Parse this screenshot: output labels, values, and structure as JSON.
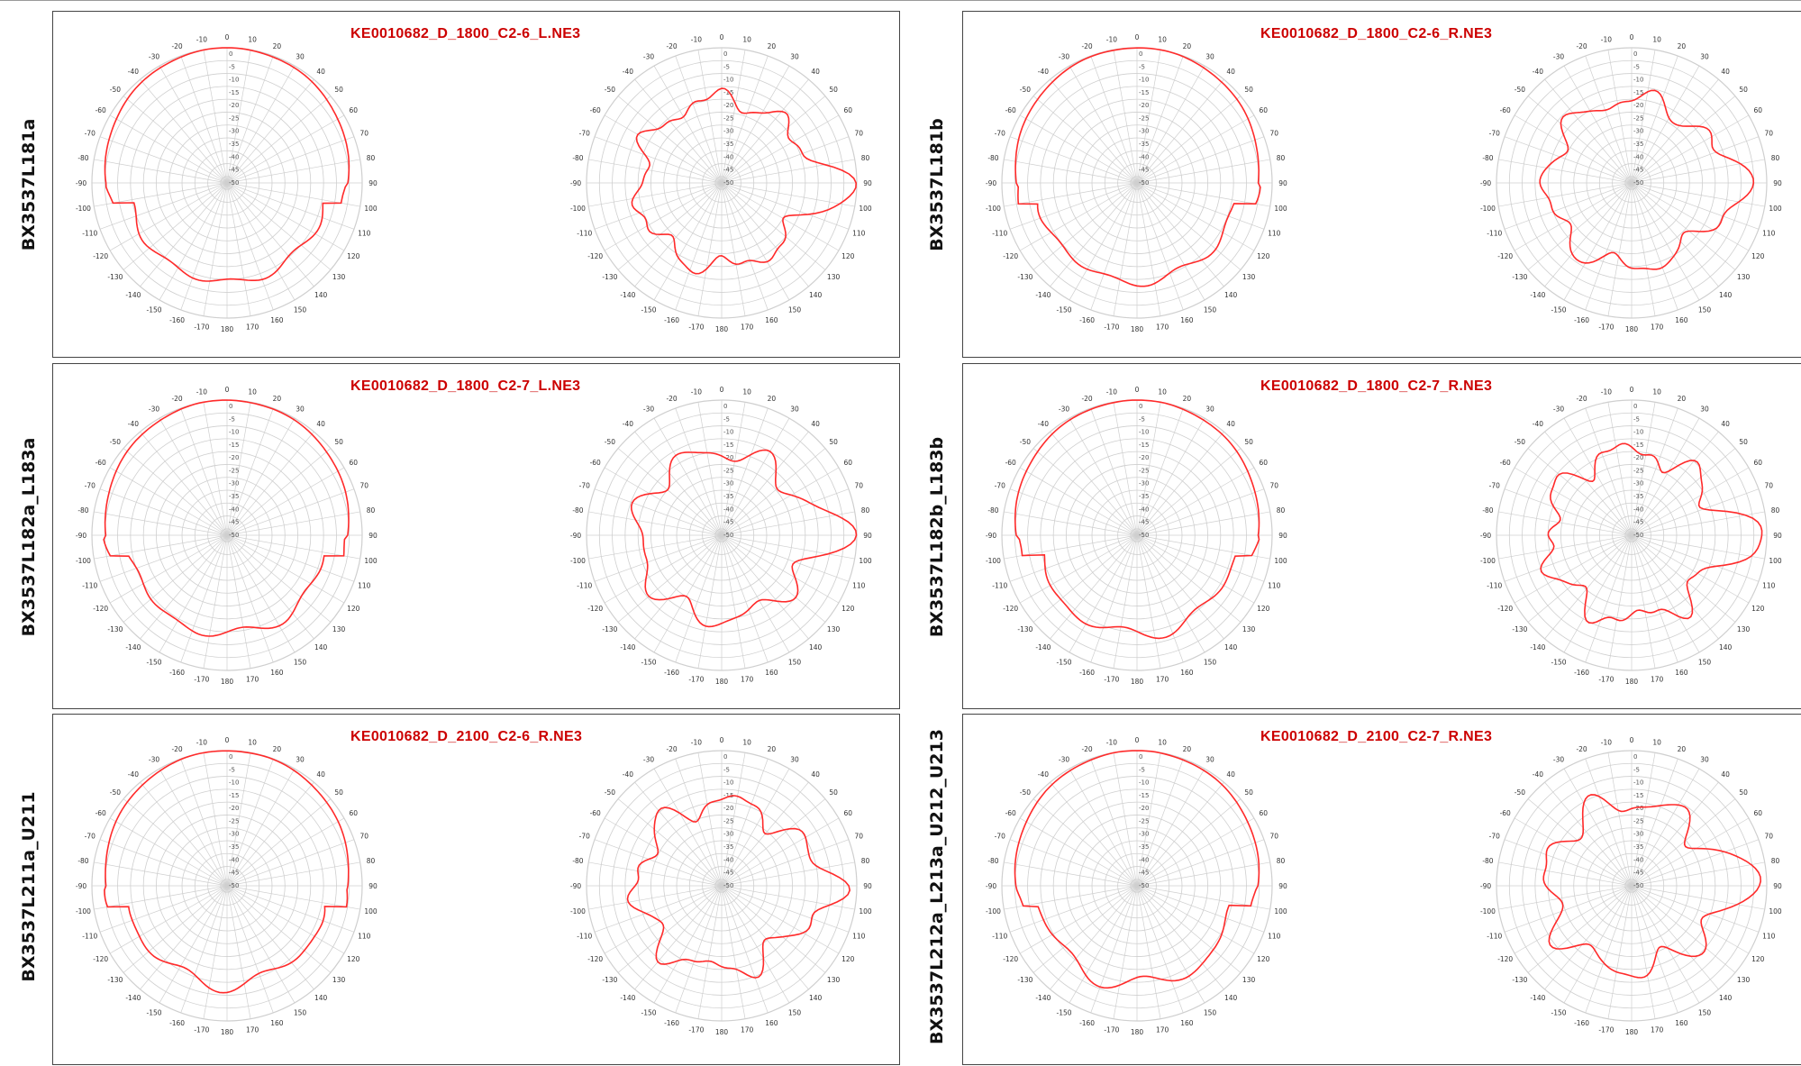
{
  "colors": {
    "trace": "#ff2a2a",
    "grid": "#cfcfcf",
    "title": "#cc0000",
    "frame": "#444444"
  },
  "chart_data": [
    {
      "type": "polar-line",
      "row_label": "BX3537L181a",
      "title": "KE0010682_D_1800_C2-6_L.NE3",
      "patterns": [
        {
          "kind": "horizontal",
          "seed": 1
        },
        {
          "kind": "vertical",
          "seed": 2
        }
      ]
    },
    {
      "type": "polar-line",
      "row_label": "BX3537L181b",
      "title": "KE0010682_D_1800_C2-6_R.NE3",
      "patterns": [
        {
          "kind": "horizontal",
          "seed": 3
        },
        {
          "kind": "vertical",
          "seed": 4
        }
      ]
    },
    {
      "type": "polar-line",
      "row_label": "BX3537L182a_L183a",
      "title": "KE0010682_D_1800_C2-7_L.NE3",
      "patterns": [
        {
          "kind": "horizontal",
          "seed": 5
        },
        {
          "kind": "vertical",
          "seed": 6
        }
      ]
    },
    {
      "type": "polar-line",
      "row_label": "BX3537L182b_L183b",
      "title": "KE0010682_D_1800_C2-7_R.NE3",
      "patterns": [
        {
          "kind": "horizontal",
          "seed": 7
        },
        {
          "kind": "vertical",
          "seed": 8
        }
      ]
    },
    {
      "type": "polar-line",
      "row_label": "BX3537L211a_U211",
      "title": "KE0010682_D_2100_C2-6_R.NE3",
      "patterns": [
        {
          "kind": "horizontal",
          "seed": 9
        },
        {
          "kind": "vertical",
          "seed": 10
        }
      ]
    },
    {
      "type": "polar-line",
      "row_label": "BX3537L212a_L213a_U212_U213",
      "title": "KE0010682_D_2100_C2-7_R.NE3",
      "patterns": [
        {
          "kind": "horizontal",
          "seed": 11
        },
        {
          "kind": "vertical",
          "seed": 12
        }
      ]
    }
  ],
  "angle_labels": [
    "0",
    "10",
    "20",
    "30",
    "40",
    "50",
    "60",
    "70",
    "80",
    "90",
    "100",
    "110",
    "120",
    "130",
    "140",
    "150",
    "160",
    "170",
    "180",
    "-170",
    "-160",
    "-150",
    "-140",
    "-130",
    "-120",
    "-110",
    "-100",
    "-90",
    "-80",
    "-70",
    "-60",
    "-50",
    "-40",
    "-30",
    "-20",
    "-10"
  ],
  "radial_labels": [
    "0",
    "-5",
    "-10",
    "-15",
    "-20",
    "-25",
    "-30",
    "-35",
    "-40",
    "-45",
    "-50"
  ]
}
